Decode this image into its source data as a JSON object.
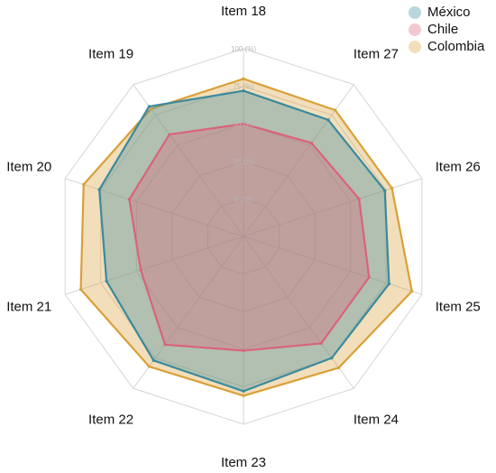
{
  "chart_data": {
    "type": "radar",
    "categories": [
      "Item 18",
      "Item 27",
      "Item 26",
      "Item 25",
      "Item 24",
      "Item 23",
      "Item 22",
      "Item 21",
      "Item 20",
      "Item 19"
    ],
    "ticks": [
      "0 (%)",
      "25 (%)",
      "50 (%)",
      "75 (%)",
      "100 (%)"
    ],
    "rmin": -25,
    "rmax": 100,
    "grid": true,
    "legend_position": "top-right",
    "series": [
      {
        "name": "México",
        "color": "#3a8a9e",
        "values": [
          72,
          71,
          74,
          77,
          75,
          78,
          77,
          71,
          76,
          82
        ]
      },
      {
        "name": "Chile",
        "color": "#d9637a",
        "values": [
          50,
          52,
          56,
          63,
          63,
          51,
          64,
          47,
          55,
          59
        ]
      },
      {
        "name": "Colombia",
        "color": "#d9a038",
        "values": [
          80,
          79,
          79,
          93,
          83,
          81,
          82,
          89,
          87,
          80
        ]
      }
    ]
  }
}
